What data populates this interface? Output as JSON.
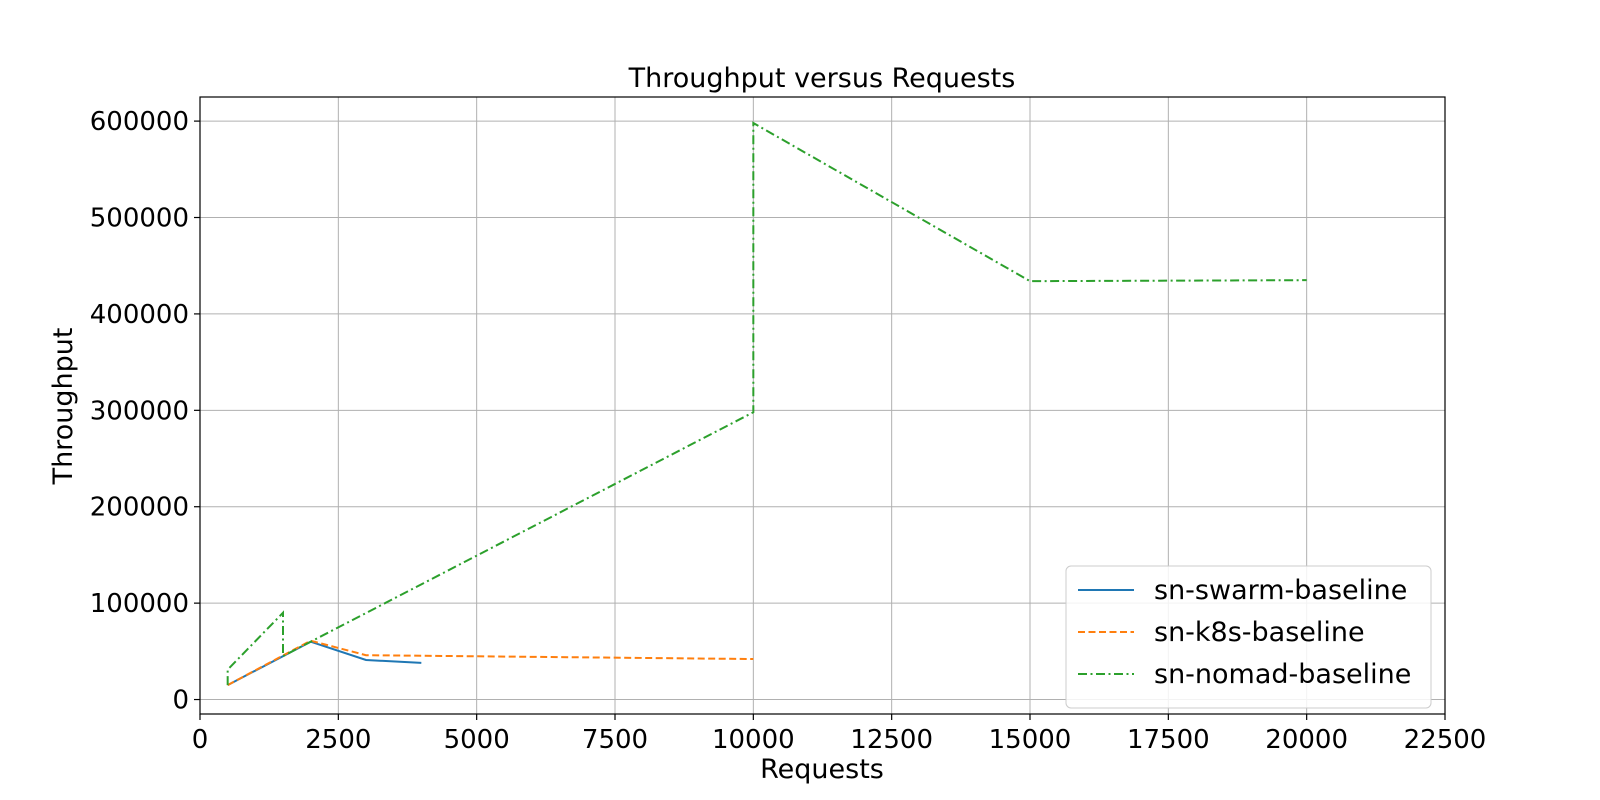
{
  "chart_data": {
    "type": "line",
    "title": "Throughput versus Requests",
    "xlabel": "Requests",
    "ylabel": "Throughput",
    "xlim": [
      0,
      22500
    ],
    "ylim": [
      -15000,
      625000
    ],
    "xticks": [
      0,
      2500,
      5000,
      7500,
      10000,
      12500,
      15000,
      17500,
      20000,
      22500
    ],
    "yticks": [
      0,
      100000,
      200000,
      300000,
      400000,
      500000,
      600000
    ],
    "grid": true,
    "legend_position": "lower-right",
    "series": [
      {
        "name": "sn-swarm-baseline",
        "color": "#1f77b4",
        "dash": "solid",
        "points": [
          [
            500,
            15000
          ],
          [
            2000,
            60000
          ],
          [
            3000,
            41000
          ],
          [
            4000,
            38000
          ]
        ]
      },
      {
        "name": "sn-k8s-baseline",
        "color": "#ff7f0e",
        "dash": "dashed",
        "points": [
          [
            500,
            15000
          ],
          [
            2000,
            61000
          ],
          [
            3000,
            46000
          ],
          [
            10000,
            42000
          ]
        ]
      },
      {
        "name": "sn-nomad-baseline",
        "color": "#2ca02c",
        "dash": "dashdot",
        "points": [
          [
            500,
            15000
          ],
          [
            500,
            31000
          ],
          [
            1500,
            90000
          ],
          [
            1500,
            45000
          ],
          [
            2000,
            60000
          ],
          [
            10000,
            298000
          ],
          [
            10000,
            598000
          ],
          [
            15000,
            434000
          ],
          [
            20000,
            435000
          ]
        ]
      }
    ]
  }
}
